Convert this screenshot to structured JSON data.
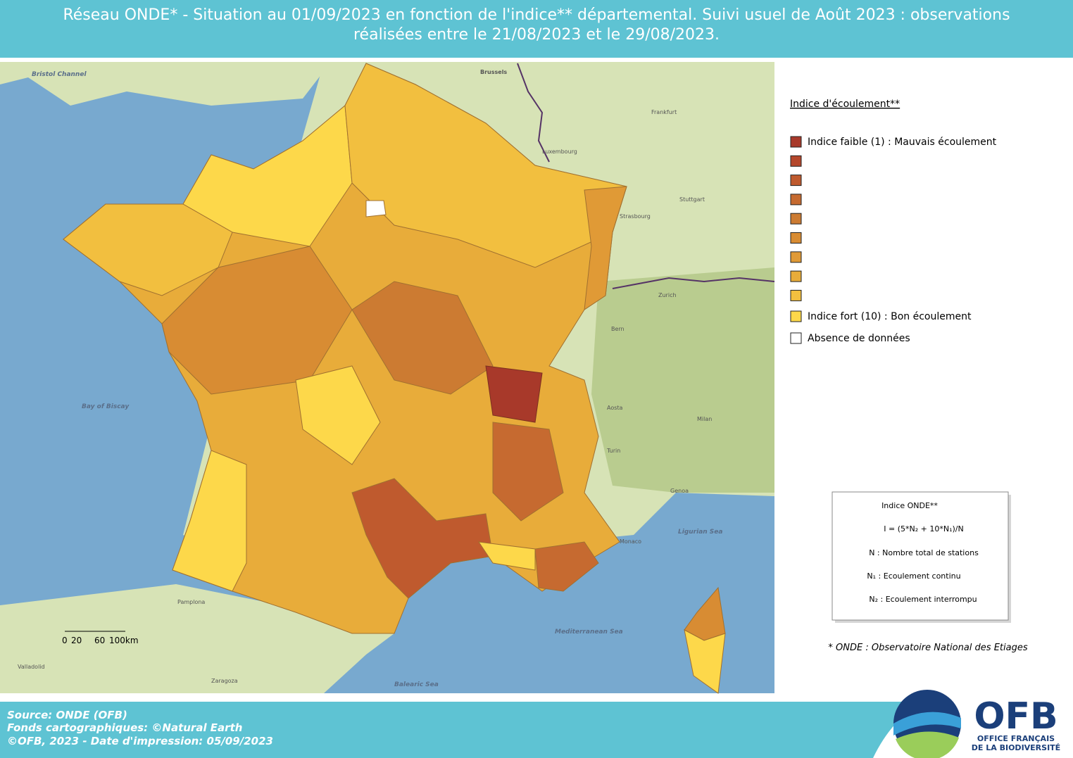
{
  "header": {
    "title_lines": [
      "Réseau ONDE* - Situation au 01/09/2023 en fonction de l'indice** départemental. Suivi usuel de Août 2023 : observations",
      "réalisées entre le 21/08/2023 et le 29/08/2023."
    ]
  },
  "legend": {
    "title": "Indice d'écoulement**",
    "items": [
      {
        "label": "Indice faible (1) : Mauvais écoulement",
        "color": "#a8392a"
      },
      {
        "color": "#b5472c"
      },
      {
        "color": "#bf5a2e"
      },
      {
        "color": "#c66a30"
      },
      {
        "color": "#cc7b32"
      },
      {
        "color": "#d88c33"
      },
      {
        "color": "#e09a36"
      },
      {
        "color": "#e8ac3a"
      },
      {
        "color": "#f2bf3f"
      },
      {
        "label": "Indice fort (10) : Bon écoulement",
        "color": "#fdd84a"
      },
      {
        "label": "Absence de données",
        "color": "#ffffff"
      }
    ]
  },
  "formula_box": {
    "title": "Indice ONDE**",
    "lines": [
      "I = (5*N₂ + 10*N₁)/N",
      "N : Nombre total de stations",
      "N₁ : Ecoulement continu",
      "N₂ : Ecoulement interrompu"
    ]
  },
  "footnote": "* ONDE : Observatoire National des Etiages",
  "source": [
    "Source: ONDE (OFB)",
    "Fonds cartographiques: ©Natural Earth",
    "©OFB, 2023 - Date d'impression: 05/09/2023"
  ],
  "scale_bar": {
    "labels": [
      "0",
      "20",
      "60",
      "100km"
    ]
  },
  "logo": {
    "acronym": "OFB",
    "name_lines": [
      "OFFICE FRANÇAIS",
      "DE LA BIODIVERSITÉ"
    ]
  },
  "map_labels": [
    "Brussels",
    "Luxembourg",
    "Frankfurt",
    "Stuttgart",
    "Strasbourg",
    "Zurich",
    "Bern",
    "Milan",
    "Turin",
    "Aosta",
    "Genoa",
    "Ligurian Sea",
    "Monaco",
    "Mediterranean Sea",
    "Balearic Sea",
    "Zaragoza",
    "Pamplona",
    "Valladolid",
    "Bay of Biscay",
    "Bristol Channel"
  ]
}
